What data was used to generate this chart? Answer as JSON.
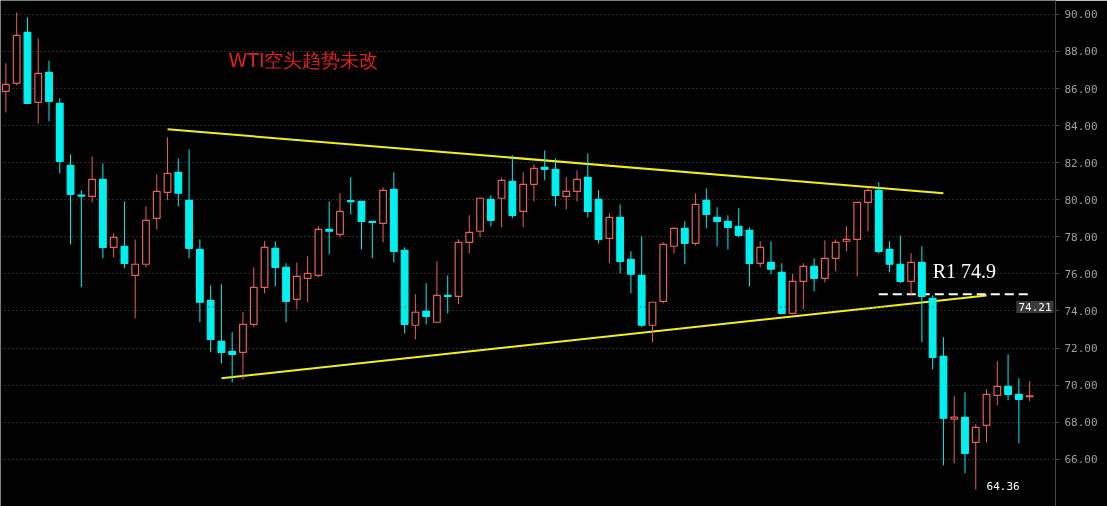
{
  "chart_data": {
    "type": "candlestick",
    "title": "WTI空头趋势未改",
    "categories": [
      null,
      null,
      null,
      null,
      null,
      null,
      null,
      null,
      null,
      null,
      null,
      null,
      null,
      null,
      null,
      null,
      null,
      null,
      null,
      null,
      null,
      null,
      null,
      null,
      null,
      null,
      null,
      null,
      null,
      null,
      null,
      null,
      null,
      null,
      null,
      null,
      null,
      null,
      null,
      null,
      null,
      null,
      null,
      null,
      null,
      null,
      null,
      null,
      null,
      null,
      null,
      null,
      null,
      null,
      null,
      null,
      null,
      null,
      null,
      null,
      null,
      null,
      null,
      null,
      null,
      null,
      null,
      null,
      null,
      null,
      null,
      null,
      null,
      null,
      null,
      null,
      null,
      null,
      null,
      null,
      null,
      null,
      null,
      null,
      null,
      null,
      null,
      null,
      null,
      null,
      null,
      null,
      null,
      null,
      null,
      null
    ],
    "ohlc": [
      [
        85.85,
        87.36,
        84.71,
        86.22
      ],
      [
        86.28,
        90.1,
        86.17,
        88.87
      ],
      [
        89.03,
        89.84,
        85.2,
        85.2
      ],
      [
        85.25,
        88.7,
        84.12,
        86.82
      ],
      [
        86.87,
        87.5,
        84.23,
        85.3
      ],
      [
        85.2,
        85.47,
        81.42,
        82.07
      ],
      [
        81.86,
        82.45,
        77.59,
        80.29
      ],
      [
        80.25,
        80.51,
        75.28,
        80.2
      ],
      [
        80.18,
        82.34,
        79.86,
        81.1
      ],
      [
        81.1,
        81.96,
        76.84,
        77.43
      ],
      [
        77.43,
        78.19,
        76.89,
        77.97
      ],
      [
        77.49,
        79.91,
        76.3,
        76.57
      ],
      [
        75.92,
        77.86,
        73.6,
        76.52
      ],
      [
        76.52,
        79.64,
        76.35,
        78.89
      ],
      [
        79.0,
        81.37,
        78.4,
        80.45
      ],
      [
        80.4,
        83.37,
        79.97,
        81.42
      ],
      [
        81.48,
        82.23,
        79.64,
        80.35
      ],
      [
        79.97,
        82.72,
        76.84,
        77.38
      ],
      [
        77.32,
        77.86,
        73.39,
        74.47
      ],
      [
        74.57,
        75.38,
        71.77,
        72.47
      ],
      [
        72.36,
        75.44,
        71.18,
        71.77
      ],
      [
        71.82,
        72.85,
        70.15,
        71.66
      ],
      [
        71.77,
        73.93,
        70.31,
        73.28
      ],
      [
        73.28,
        76.35,
        73.12,
        75.27
      ],
      [
        75.27,
        77.76,
        74.95,
        77.43
      ],
      [
        77.38,
        77.76,
        75.33,
        76.35
      ],
      [
        76.35,
        76.57,
        73.39,
        74.52
      ],
      [
        74.63,
        76.62,
        74.09,
        75.87
      ],
      [
        75.76,
        76.95,
        74.47,
        76.03
      ],
      [
        75.92,
        78.57,
        75.81,
        78.4
      ],
      [
        78.4,
        79.91,
        77.05,
        78.3
      ],
      [
        78.13,
        80.35,
        77.97,
        79.37
      ],
      [
        79.95,
        81.21,
        79.21,
        79.9
      ],
      [
        79.91,
        79.91,
        77.32,
        78.83
      ],
      [
        78.83,
        78.83,
        76.84,
        78.78
      ],
      [
        78.73,
        80.67,
        77.7,
        80.51
      ],
      [
        80.56,
        81.48,
        76.62,
        77.22
      ],
      [
        77.27,
        77.43,
        72.79,
        73.28
      ],
      [
        73.23,
        74.9,
        72.47,
        73.93
      ],
      [
        73.98,
        75.49,
        73.28,
        73.71
      ],
      [
        73.39,
        76.68,
        73.39,
        74.84
      ],
      [
        74.84,
        75.92,
        73.87,
        74.79
      ],
      [
        74.79,
        77.86,
        74.36,
        77.7
      ],
      [
        77.7,
        79.16,
        77.11,
        78.24
      ],
      [
        78.3,
        80.13,
        77.97,
        80.08
      ],
      [
        80.02,
        80.24,
        78.57,
        78.89
      ],
      [
        80.08,
        81.21,
        78.51,
        81.05
      ],
      [
        80.99,
        82.39,
        79.0,
        79.16
      ],
      [
        79.37,
        81.48,
        78.51,
        80.83
      ],
      [
        80.83,
        81.91,
        79.91,
        81.69
      ],
      [
        81.75,
        82.66,
        81.05,
        81.64
      ],
      [
        81.64,
        82.23,
        79.64,
        80.24
      ],
      [
        80.18,
        81.21,
        79.48,
        80.45
      ],
      [
        80.45,
        81.59,
        79.91,
        81.1
      ],
      [
        81.21,
        82.5,
        79.05,
        79.37
      ],
      [
        80.02,
        80.51,
        77.65,
        77.86
      ],
      [
        77.92,
        79.27,
        76.57,
        79.05
      ],
      [
        79.05,
        79.75,
        76.03,
        76.68
      ],
      [
        76.79,
        77.22,
        74.95,
        75.98
      ],
      [
        75.92,
        78.03,
        73.12,
        73.23
      ],
      [
        73.23,
        74.47,
        72.31,
        74.47
      ],
      [
        74.52,
        77.7,
        74.41,
        77.59
      ],
      [
        77.49,
        78.51,
        77.11,
        78.46
      ],
      [
        78.46,
        78.83,
        76.52,
        77.65
      ],
      [
        77.65,
        80.35,
        77.54,
        79.75
      ],
      [
        79.97,
        80.61,
        78.46,
        79.21
      ],
      [
        79.05,
        79.59,
        77.49,
        78.83
      ],
      [
        78.83,
        79.16,
        77.32,
        78.51
      ],
      [
        78.57,
        79.54,
        77.97,
        78.08
      ],
      [
        78.35,
        78.51,
        75.33,
        76.57
      ],
      [
        76.57,
        77.76,
        76.35,
        77.43
      ],
      [
        76.62,
        77.76,
        75.98,
        76.25
      ],
      [
        76.08,
        76.57,
        73.82,
        73.87
      ],
      [
        73.87,
        75.98,
        73.82,
        75.6
      ],
      [
        75.6,
        76.57,
        74.09,
        76.41
      ],
      [
        76.41,
        76.84,
        75.06,
        75.76
      ],
      [
        75.76,
        77.81,
        75.54,
        76.84
      ],
      [
        76.84,
        77.86,
        76.14,
        77.7
      ],
      [
        77.76,
        78.57,
        77.22,
        77.86
      ],
      [
        77.86,
        79.86,
        75.87,
        79.86
      ],
      [
        79.86,
        80.61,
        78.3,
        80.51
      ],
      [
        80.51,
        80.94,
        77.11,
        77.22
      ],
      [
        77.32,
        77.76,
        76.08,
        76.52
      ],
      [
        76.52,
        78.08,
        75.49,
        75.6
      ],
      [
        75.6,
        77.11,
        74.84,
        76.62
      ],
      [
        76.62,
        77.49,
        72.31,
        74.79
      ],
      [
        74.68,
        74.84,
        70.85,
        71.5
      ],
      [
        71.55,
        72.58,
        65.67,
        68.21
      ],
      [
        68.16,
        69.4,
        65.78,
        68.27
      ],
      [
        68.26,
        69.61,
        65.24,
        66.32
      ],
      [
        66.91,
        67.89,
        64.36,
        67.72
      ],
      [
        67.83,
        69.77,
        66.91,
        69.5
      ],
      [
        69.45,
        71.28,
        68.91,
        69.93
      ],
      [
        69.93,
        71.66,
        69.18,
        69.5
      ],
      [
        69.5,
        70.37,
        66.86,
        69.23
      ],
      [
        69.37,
        70.21,
        69.13,
        69.42
      ]
    ],
    "colors": [
      "#e8605a",
      "#e8605a",
      "#00f0f0",
      "#e8605a",
      "#00f0f0",
      "#00f0f0",
      "#00f0f0",
      "#00f0f0",
      "#e8605a",
      "#00f0f0",
      "#e8605a",
      "#00f0f0",
      "#e8605a",
      "#e8605a",
      "#e8605a",
      "#e8605a",
      "#00f0f0",
      "#00f0f0",
      "#00f0f0",
      "#00f0f0",
      "#00f0f0",
      "#00f0f0",
      "#e8605a",
      "#e8605a",
      "#e8605a",
      "#00f0f0",
      "#00f0f0",
      "#e8605a",
      "#e8605a",
      "#e8605a",
      "#00f0f0",
      "#e8605a",
      "#00f0f0",
      "#00f0f0",
      "#00f0f0",
      "#e8605a",
      "#00f0f0",
      "#00f0f0",
      "#e8605a",
      "#00f0f0",
      "#e8605a",
      "#00f0f0",
      "#e8605a",
      "#e8605a",
      "#e8605a",
      "#00f0f0",
      "#e8605a",
      "#00f0f0",
      "#e8605a",
      "#e8605a",
      "#00f0f0",
      "#00f0f0",
      "#e8605a",
      "#e8605a",
      "#00f0f0",
      "#00f0f0",
      "#e8605a",
      "#00f0f0",
      "#00f0f0",
      "#00f0f0",
      "#e8605a",
      "#e8605a",
      "#e8605a",
      "#00f0f0",
      "#e8605a",
      "#00f0f0",
      "#00f0f0",
      "#00f0f0",
      "#00f0f0",
      "#00f0f0",
      "#e8605a",
      "#00f0f0",
      "#00f0f0",
      "#e8605a",
      "#e8605a",
      "#00f0f0",
      "#e8605a",
      "#e8605a",
      "#e8605a",
      "#e8605a",
      "#e8605a",
      "#00f0f0",
      "#00f0f0",
      "#00f0f0",
      "#e8605a",
      "#00f0f0",
      "#00f0f0",
      "#00f0f0",
      "#e8605a",
      "#00f0f0",
      "#e8605a",
      "#e8605a",
      "#e8605a",
      "#00f0f0",
      "#00f0f0",
      "#e8605a"
    ],
    "series": [
      {
        "type": "line",
        "color": "#f0f020",
        "values": [
          null,
          null,
          null,
          null,
          null,
          null,
          null,
          null,
          null,
          null,
          null,
          null,
          null,
          null,
          null,
          83.8,
          null,
          null,
          null,
          null,
          null,
          null,
          null,
          null,
          null,
          null,
          null,
          null,
          null,
          null,
          null,
          null,
          null,
          null,
          null,
          null,
          null,
          null,
          null,
          null,
          null,
          null,
          null,
          null,
          null,
          null,
          null,
          null,
          null,
          null,
          null,
          null,
          null,
          null,
          null,
          null,
          null,
          null,
          null,
          null,
          null,
          null,
          null,
          null,
          null,
          null,
          null,
          null,
          null,
          null,
          null,
          null,
          null,
          null,
          null,
          null,
          null,
          null,
          null,
          null,
          null,
          null,
          null,
          null,
          null,
          null,
          null,
          80.35,
          null,
          null,
          null,
          null,
          null,
          null,
          null,
          null
        ]
      },
      {
        "type": "line",
        "color": "#f0f020",
        "values": [
          null,
          null,
          null,
          null,
          null,
          null,
          null,
          null,
          null,
          null,
          null,
          null,
          null,
          null,
          null,
          null,
          null,
          null,
          null,
          null,
          70.37,
          null,
          null,
          null,
          null,
          null,
          null,
          null,
          null,
          null,
          null,
          null,
          null,
          null,
          null,
          null,
          null,
          null,
          null,
          null,
          null,
          null,
          null,
          null,
          null,
          null,
          null,
          null,
          null,
          null,
          null,
          null,
          null,
          null,
          null,
          null,
          null,
          null,
          null,
          null,
          null,
          null,
          null,
          null,
          null,
          null,
          null,
          null,
          null,
          null,
          null,
          null,
          null,
          null,
          null,
          null,
          null,
          null,
          null,
          null,
          null,
          null,
          null,
          null,
          null,
          null,
          null,
          null,
          null,
          null,
          null,
          74.84,
          null,
          null,
          null,
          null
        ]
      },
      {
        "type": "line",
        "name": "R1 74.9",
        "color": "#ffffff",
        "line_style": "dashed",
        "values": [
          null,
          null,
          null,
          null,
          null,
          null,
          null,
          null,
          null,
          null,
          null,
          null,
          null,
          null,
          null,
          null,
          null,
          null,
          null,
          null,
          null,
          null,
          null,
          null,
          null,
          null,
          null,
          null,
          null,
          null,
          null,
          null,
          null,
          null,
          null,
          null,
          null,
          null,
          null,
          null,
          null,
          null,
          null,
          null,
          null,
          null,
          null,
          null,
          null,
          null,
          null,
          null,
          null,
          null,
          null,
          null,
          null,
          null,
          null,
          null,
          null,
          null,
          null,
          null,
          null,
          null,
          null,
          null,
          null,
          null,
          null,
          null,
          null,
          null,
          null,
          null,
          null,
          null,
          null,
          null,
          null,
          74.9,
          null,
          null,
          null,
          null,
          null,
          null,
          null,
          null,
          null,
          null,
          null,
          null,
          null,
          74.9
        ]
      }
    ],
    "ylim": [
      63.45,
      90.75
    ],
    "yticks": [
      {
        "value": 66,
        "label": "66.00"
      },
      {
        "value": 68,
        "label": "68.00"
      },
      {
        "value": 70,
        "label": "70.00"
      },
      {
        "value": 72,
        "label": "72.00"
      },
      {
        "value": 74,
        "label": "74.00"
      },
      {
        "value": 76,
        "label": "76.00"
      },
      {
        "value": 78,
        "label": "78.00"
      },
      {
        "value": 80,
        "label": "80.00"
      },
      {
        "value": 82,
        "label": "82.00"
      },
      {
        "value": 84,
        "label": "84.00"
      },
      {
        "value": 86,
        "label": "86.00"
      },
      {
        "value": 88,
        "label": "88.00"
      },
      {
        "value": 90,
        "label": "90.00"
      }
    ],
    "ref_lines": [
      {
        "axis": "y",
        "value": 74.21,
        "label": "74.21",
        "color": "#3a3a3a"
      }
    ],
    "grid": "y",
    "tick_labels": "y",
    "annotations": [
      "64.36"
    ]
  }
}
